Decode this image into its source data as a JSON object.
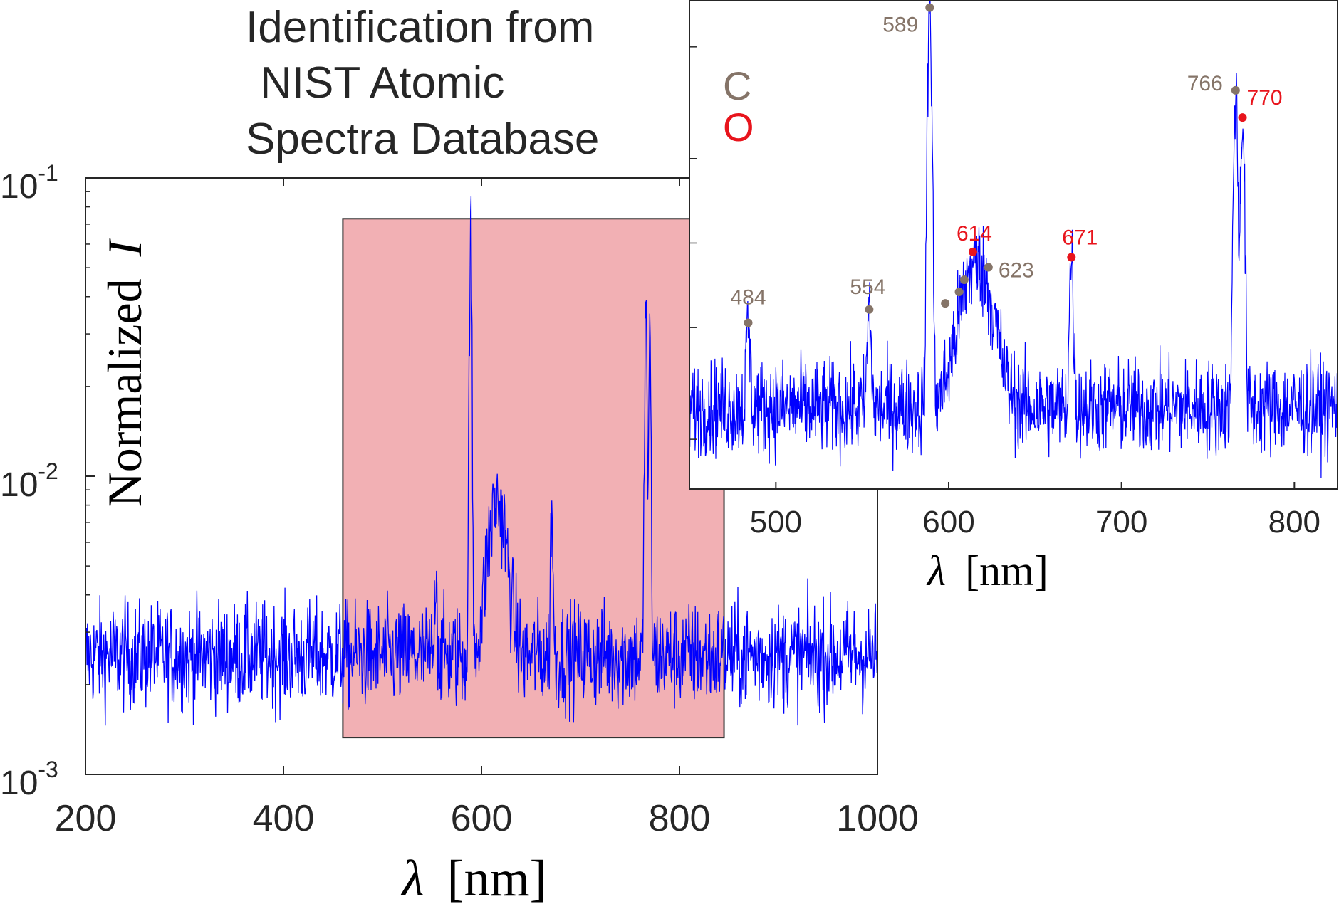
{
  "chart_data": [
    {
      "type": "line",
      "title_lines": [
        "Identification from",
        "NIST Atomic",
        "Spectra Database"
      ],
      "xlabel_symbol": "λ",
      "xlabel_unit": "[nm]",
      "ylabel_text": "Normalized",
      "ylabel_symbol": "I",
      "xlim": [
        200,
        1000
      ],
      "xticks": [
        200,
        400,
        600,
        800,
        1000
      ],
      "ylim": [
        0.001,
        0.1
      ],
      "ylog": true,
      "ytick_values": [
        0.001,
        0.01,
        0.1
      ],
      "ytick_mantissa": "10",
      "ytick_exponents": [
        "-3",
        "-2",
        "-1"
      ],
      "line_color": "#0000ff",
      "baseline": 0.0025,
      "highlight_region": {
        "x": [
          460,
          845
        ],
        "y": [
          0.00133,
          0.073
        ],
        "color": "#f2b0b4"
      },
      "peaks": [
        {
          "x": 554,
          "y": 0.0052
        },
        {
          "x": 589,
          "y": 0.066
        },
        {
          "x": 616,
          "y": 0.0082
        },
        {
          "x": 671,
          "y": 0.0082
        },
        {
          "x": 766,
          "y": 0.036
        },
        {
          "x": 770,
          "y": 0.026
        }
      ]
    },
    {
      "type": "line",
      "inset": true,
      "xlabel_symbol": "λ",
      "xlabel_unit": "[nm]",
      "xlim": [
        450,
        825
      ],
      "xticks": [
        500,
        600,
        700,
        800
      ],
      "ylim": [
        0.00133,
        0.073
      ],
      "ylog": true,
      "line_color": "#0000ff",
      "legend": [
        {
          "label": "C",
          "color": "#857468"
        },
        {
          "label": "O",
          "color": "#e8141c"
        }
      ],
      "annotations": [
        {
          "x": 484,
          "y": 0.0052,
          "label": "484",
          "element": "C"
        },
        {
          "x": 554,
          "y": 0.0058,
          "label": "554",
          "element": "C"
        },
        {
          "x": 589,
          "y": 0.069,
          "label": "589",
          "element": "C"
        },
        {
          "x": 598,
          "y": 0.0061,
          "element": "C"
        },
        {
          "x": 606,
          "y": 0.0067,
          "element": "C"
        },
        {
          "x": 609,
          "y": 0.0074,
          "element": "C"
        },
        {
          "x": 614,
          "y": 0.0093,
          "label": "614",
          "element": "O"
        },
        {
          "x": 623,
          "y": 0.0082,
          "label": "623",
          "element": "C"
        },
        {
          "x": 671,
          "y": 0.0089,
          "label": "671",
          "element": "O"
        },
        {
          "x": 766,
          "y": 0.035,
          "label": "766",
          "element": "C"
        },
        {
          "x": 770,
          "y": 0.028,
          "label": "770",
          "element": "O"
        }
      ]
    }
  ]
}
